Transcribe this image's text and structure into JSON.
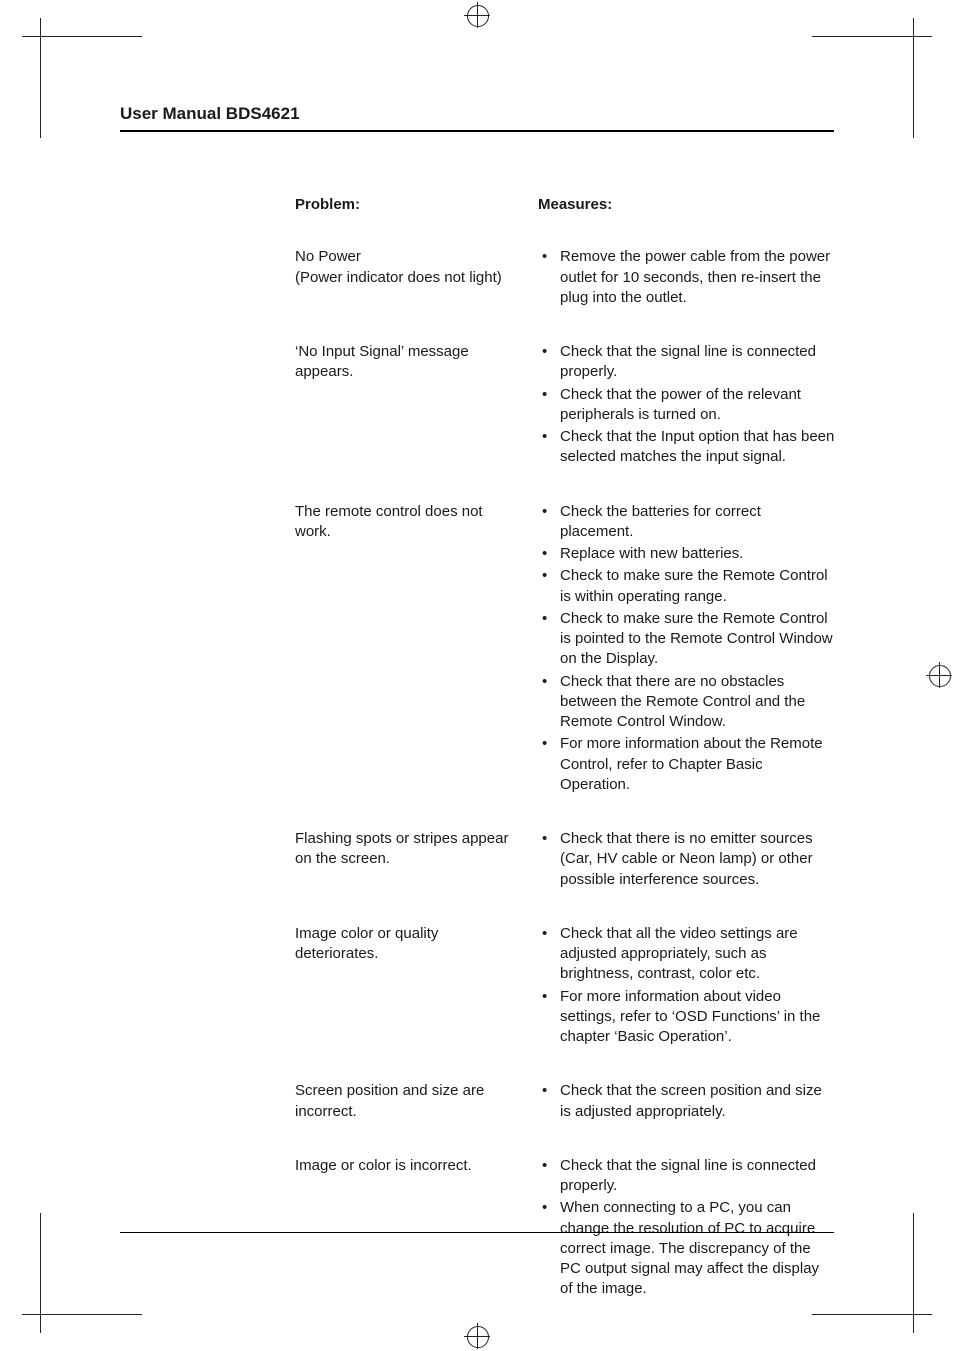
{
  "manual_title": "User Manual BDS4621",
  "columns": {
    "problem": "Problem:",
    "measures": "Measures:"
  },
  "rows": [
    {
      "problem": "No Power\n(Power indicator does not light)",
      "measures": [
        "Remove the power cable from the power outlet for 10 seconds, then re-insert the plug into the outlet."
      ]
    },
    {
      "problem": "‘No Input Signal’ message appears.",
      "measures": [
        "Check that the signal line is connected properly.",
        "Check that the power of the relevant peripherals is turned on.",
        "Check that the Input option that has been selected matches the input signal."
      ]
    },
    {
      "problem": "The remote control does not work.",
      "measures": [
        "Check the batteries for correct placement.",
        "Replace with new batteries.",
        "Check to make sure the Remote Control is within operating range.",
        "Check to make sure the Remote Control is pointed to the Remote Control Window on the Display.",
        "Check that there are no obstacles between the Remote Control and the Remote Control Window.",
        "For more information about the Remote Control, refer to Chapter Basic Operation."
      ]
    },
    {
      "problem": "Flashing spots or stripes appear on the screen.",
      "measures": [
        "Check that there is no emitter sources (Car, HV cable or Neon lamp) or other possible interference sources."
      ]
    },
    {
      "problem": "Image color or quality deteriorates.",
      "measures": [
        "Check that all the video settings are adjusted appropriately, such as brightness, contrast, color etc.",
        "For more information about video settings, refer to ‘OSD Functions’ in the chapter ‘Basic Operation’."
      ]
    },
    {
      "problem": "Screen position and size are incorrect.",
      "measures": [
        "Check that the screen position and size is adjusted appropriately."
      ]
    },
    {
      "problem": "Image or color is incorrect.",
      "measures": [
        "Check that the signal line is connected properly.",
        "When connecting to a PC, you can change the resolution of PC to acquire correct image. The discrepancy of the PC output signal may affect the display of the image."
      ]
    }
  ]
}
